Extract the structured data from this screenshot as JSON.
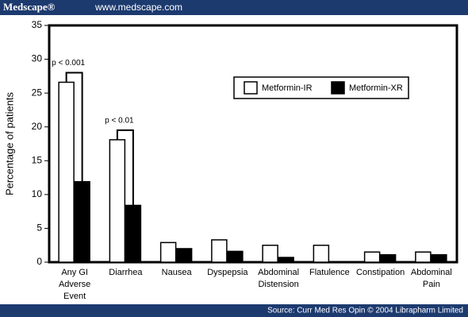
{
  "header": {
    "brand": "Medscape®",
    "url": "www.medscape.com"
  },
  "footer": {
    "source": "Source: Curr Med Res Opin © 2004 Librapharm Limited"
  },
  "chart_data": {
    "type": "bar",
    "y_label": "Percentage of patients",
    "categories": [
      [
        "Any GI",
        "Adverse",
        "Event"
      ],
      [
        "Diarrhea"
      ],
      [
        "Nausea"
      ],
      [
        "Dyspepsia"
      ],
      [
        "Abdominal",
        "Distension"
      ],
      [
        "Flatulence"
      ],
      [
        "Constipation"
      ],
      [
        "Abdominal",
        "Pain"
      ]
    ],
    "series": [
      {
        "name": "Metformin-IR",
        "color": "#ffffff",
        "values": [
          26.6,
          18.1,
          2.9,
          3.3,
          2.5,
          2.5,
          1.5,
          1.5
        ]
      },
      {
        "name": "Metformin-XR",
        "color": "#000000",
        "values": [
          11.9,
          8.4,
          2.0,
          1.6,
          0.7,
          0,
          1.1,
          1.1
        ]
      }
    ],
    "ylim": [
      0,
      35
    ],
    "yticks": [
      0,
      5,
      10,
      15,
      20,
      25,
      30,
      35
    ],
    "annotations": [
      {
        "text": "p < 0.001",
        "category": 0
      },
      {
        "text": "p < 0.01",
        "category": 1
      }
    ]
  }
}
